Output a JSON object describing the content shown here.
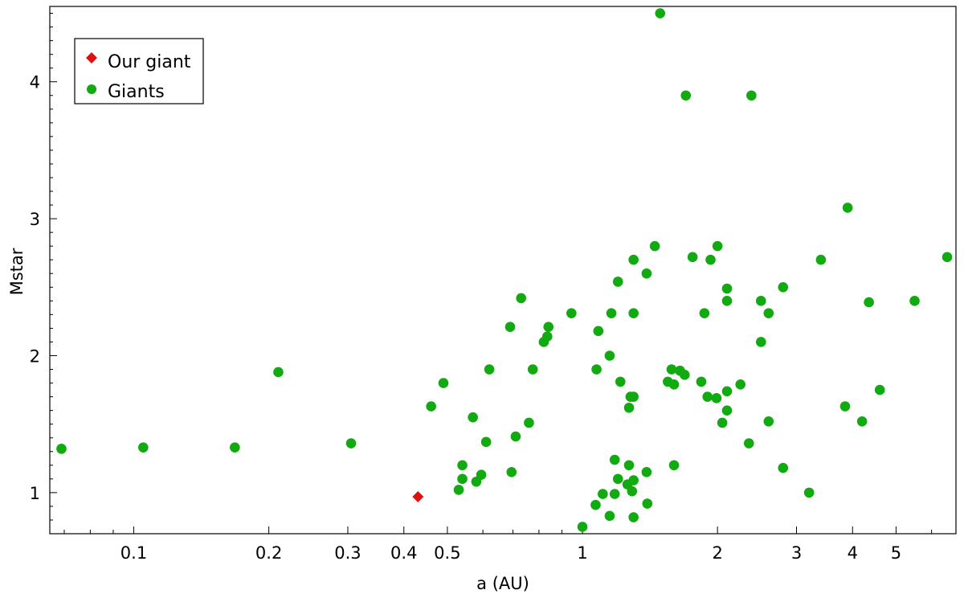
{
  "chart_data": {
    "type": "scatter",
    "xlabel": "a (AU)",
    "ylabel": "Mstar",
    "x_scale": "log",
    "xlim": [
      0.065,
      6.8
    ],
    "ylim": [
      0.7,
      4.55
    ],
    "x_ticks": [
      {
        "value": 0.1,
        "label": "0.1"
      },
      {
        "value": 0.2,
        "label": "0.2"
      },
      {
        "value": 0.3,
        "label": "0.3"
      },
      {
        "value": 0.4,
        "label": "0.4"
      },
      {
        "value": 0.5,
        "label": "0.5"
      },
      {
        "value": 1,
        "label": "1"
      },
      {
        "value": 2,
        "label": "2"
      },
      {
        "value": 3,
        "label": "3"
      },
      {
        "value": 4,
        "label": "4"
      },
      {
        "value": 5,
        "label": "5"
      }
    ],
    "y_ticks": [
      {
        "value": 1,
        "label": "1"
      },
      {
        "value": 2,
        "label": "2"
      },
      {
        "value": 3,
        "label": "3"
      },
      {
        "value": 4,
        "label": "4"
      }
    ],
    "grid": false,
    "legend_position": "top-left",
    "series": [
      {
        "name": "Our giant",
        "color": "#dd1111",
        "marker": "diamond",
        "points": [
          [
            0.43,
            0.97
          ]
        ]
      },
      {
        "name": "Giants",
        "color": "#11aa11",
        "marker": "circle",
        "points": [
          [
            0.069,
            1.32
          ],
          [
            0.105,
            1.33
          ],
          [
            0.168,
            1.33
          ],
          [
            0.21,
            1.88
          ],
          [
            0.305,
            1.36
          ],
          [
            0.46,
            1.63
          ],
          [
            0.49,
            1.8
          ],
          [
            0.53,
            1.02
          ],
          [
            0.54,
            1.2
          ],
          [
            0.54,
            1.1
          ],
          [
            0.57,
            1.55
          ],
          [
            0.58,
            1.08
          ],
          [
            0.595,
            1.13
          ],
          [
            0.61,
            1.37
          ],
          [
            0.62,
            1.9
          ],
          [
            0.69,
            2.21
          ],
          [
            0.695,
            1.15
          ],
          [
            0.71,
            1.41
          ],
          [
            0.73,
            2.42
          ],
          [
            0.76,
            1.51
          ],
          [
            0.775,
            1.9
          ],
          [
            0.82,
            2.1
          ],
          [
            0.835,
            2.14
          ],
          [
            0.84,
            2.21
          ],
          [
            0.945,
            2.31
          ],
          [
            1.0,
            0.75
          ],
          [
            1.075,
            1.9
          ],
          [
            1.07,
            0.91
          ],
          [
            1.085,
            2.18
          ],
          [
            1.11,
            0.99
          ],
          [
            1.15,
            2.0
          ],
          [
            1.15,
            0.83
          ],
          [
            1.16,
            2.31
          ],
          [
            1.18,
            1.24
          ],
          [
            1.18,
            0.99
          ],
          [
            1.2,
            2.54
          ],
          [
            1.2,
            1.1
          ],
          [
            1.215,
            1.81
          ],
          [
            1.26,
            1.06
          ],
          [
            1.27,
            1.2
          ],
          [
            1.27,
            1.62
          ],
          [
            1.28,
            1.7
          ],
          [
            1.3,
            1.7
          ],
          [
            1.3,
            2.7
          ],
          [
            1.3,
            2.31
          ],
          [
            1.29,
            1.01
          ],
          [
            1.3,
            1.09
          ],
          [
            1.3,
            0.82
          ],
          [
            1.39,
            2.6
          ],
          [
            1.39,
            1.15
          ],
          [
            1.395,
            0.92
          ],
          [
            1.45,
            2.8
          ],
          [
            1.49,
            4.5
          ],
          [
            1.55,
            1.81
          ],
          [
            1.58,
            1.9
          ],
          [
            1.6,
            1.79
          ],
          [
            1.6,
            1.2
          ],
          [
            1.65,
            1.89
          ],
          [
            1.69,
            1.86
          ],
          [
            1.7,
            3.9
          ],
          [
            1.76,
            2.72
          ],
          [
            1.84,
            1.81
          ],
          [
            1.87,
            2.31
          ],
          [
            1.9,
            1.7
          ],
          [
            1.93,
            2.7
          ],
          [
            1.99,
            1.69
          ],
          [
            2.0,
            2.8
          ],
          [
            2.05,
            1.51
          ],
          [
            2.1,
            2.49
          ],
          [
            2.1,
            2.4
          ],
          [
            2.1,
            1.74
          ],
          [
            2.1,
            1.6
          ],
          [
            2.25,
            1.79
          ],
          [
            2.35,
            1.36
          ],
          [
            2.38,
            3.9
          ],
          [
            2.5,
            2.4
          ],
          [
            2.5,
            2.1
          ],
          [
            2.6,
            2.31
          ],
          [
            2.6,
            1.52
          ],
          [
            2.8,
            2.5
          ],
          [
            2.8,
            1.18
          ],
          [
            3.2,
            1.0
          ],
          [
            3.4,
            2.7
          ],
          [
            3.9,
            3.08
          ],
          [
            3.85,
            1.63
          ],
          [
            4.2,
            1.52
          ],
          [
            4.35,
            2.39
          ],
          [
            4.6,
            1.75
          ],
          [
            5.5,
            2.4
          ],
          [
            6.5,
            2.72
          ]
        ]
      }
    ]
  }
}
